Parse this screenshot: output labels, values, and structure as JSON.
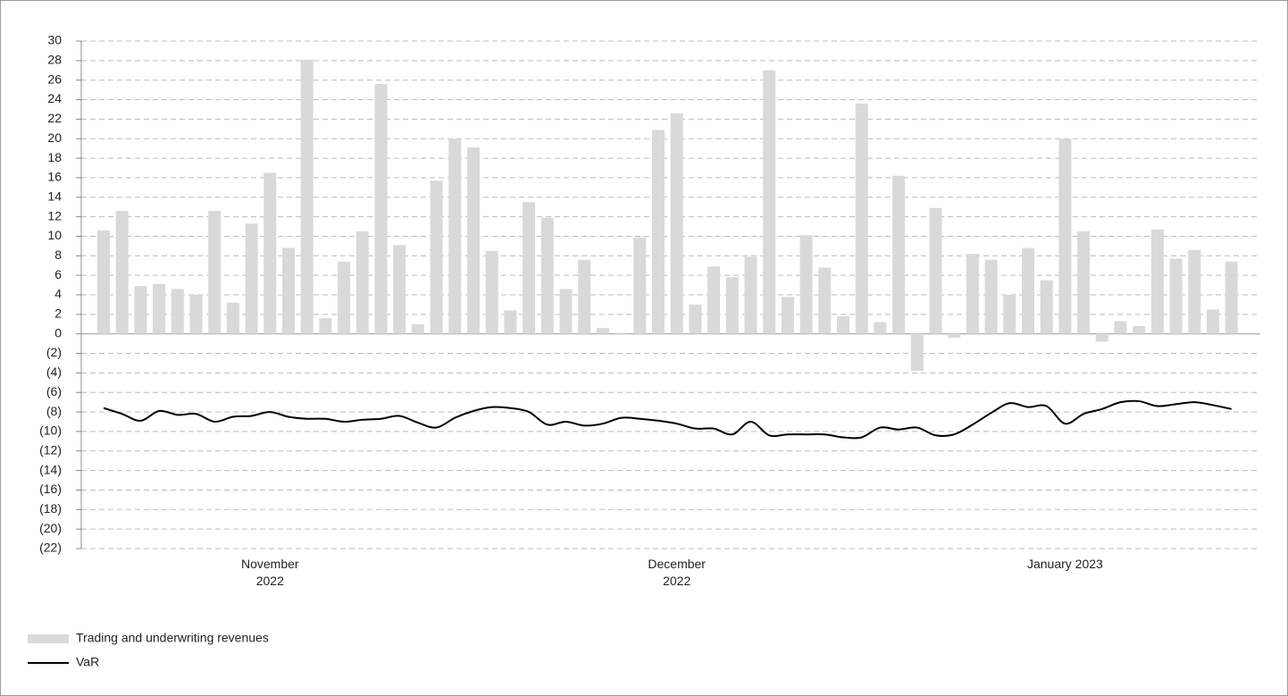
{
  "chart_data": {
    "type": "bar_line",
    "categories": [
      null,
      null,
      null,
      null,
      null,
      null,
      null,
      null,
      null,
      "November 2022",
      null,
      null,
      null,
      null,
      null,
      null,
      null,
      null,
      null,
      null,
      null,
      null,
      null,
      null,
      null,
      null,
      null,
      null,
      null,
      null,
      null,
      "December 2022",
      null,
      null,
      null,
      null,
      null,
      null,
      null,
      null,
      null,
      null,
      null,
      null,
      null,
      null,
      null,
      null,
      null,
      null,
      null,
      null,
      "January 2023",
      null,
      null,
      null,
      null,
      null,
      null,
      null,
      null,
      null
    ],
    "series": [
      {
        "name": "Trading and underwriting revenues",
        "type": "bar",
        "color": "#d9d9d9",
        "values": [
          10.6,
          12.6,
          4.9,
          5.1,
          4.6,
          4.0,
          12.6,
          3.2,
          11.3,
          16.5,
          8.8,
          28.1,
          1.6,
          7.4,
          10.5,
          25.6,
          9.1,
          1.0,
          15.7,
          20.0,
          19.1,
          8.5,
          2.4,
          13.5,
          11.9,
          4.6,
          7.6,
          0.6,
          -0.1,
          9.9,
          20.9,
          22.6,
          3.0,
          6.9,
          5.8,
          7.9,
          27.0,
          3.8,
          10.1,
          6.8,
          1.8,
          23.6,
          1.2,
          16.2,
          -3.8,
          12.9,
          -0.4,
          8.2,
          7.6,
          4.0,
          8.8,
          5.5,
          20.0,
          10.5,
          -0.8,
          1.3,
          0.8,
          10.7,
          7.7,
          8.6,
          2.5,
          7.4
        ]
      },
      {
        "name": "VaR",
        "type": "line",
        "color": "#000000",
        "values": [
          -7.6,
          -8.2,
          -8.9,
          -7.9,
          -8.3,
          -8.2,
          -9.0,
          -8.5,
          -8.4,
          -8.0,
          -8.5,
          -8.7,
          -8.7,
          -9.0,
          -8.8,
          -8.7,
          -8.4,
          -9.1,
          -9.6,
          -8.6,
          -7.9,
          -7.5,
          -7.6,
          -8.0,
          -9.3,
          -9.0,
          -9.4,
          -9.2,
          -8.6,
          -8.7,
          -8.9,
          -9.2,
          -9.7,
          -9.7,
          -10.3,
          -9.0,
          -10.4,
          -10.3,
          -10.3,
          -10.3,
          -10.6,
          -10.6,
          -9.6,
          -9.8,
          -9.6,
          -10.4,
          -10.3,
          -9.3,
          -8.1,
          -7.1,
          -7.5,
          -7.4,
          -9.2,
          -8.2,
          -7.7,
          -7.0,
          -6.9,
          -7.4,
          -7.2,
          -7.0,
          -7.3,
          -7.7
        ]
      }
    ],
    "ylim": [
      -22,
      30
    ],
    "yticks": [
      30,
      28,
      26,
      24,
      22,
      20,
      18,
      16,
      14,
      12,
      10,
      8,
      6,
      4,
      2,
      0,
      {
        "value": -2,
        "label": "(2)"
      },
      {
        "value": -4,
        "label": "(4)"
      },
      {
        "value": -6,
        "label": "(6)"
      },
      {
        "value": -8,
        "label": "(8)"
      },
      {
        "value": -10,
        "label": "(10)"
      },
      {
        "value": -12,
        "label": "(12)"
      },
      {
        "value": -14,
        "label": "(14)"
      },
      {
        "value": -16,
        "label": "(16)"
      },
      {
        "value": -18,
        "label": "(18)"
      },
      {
        "value": -20,
        "label": "(20)"
      },
      {
        "value": -22,
        "label": "(22)"
      }
    ],
    "grid": true
  }
}
